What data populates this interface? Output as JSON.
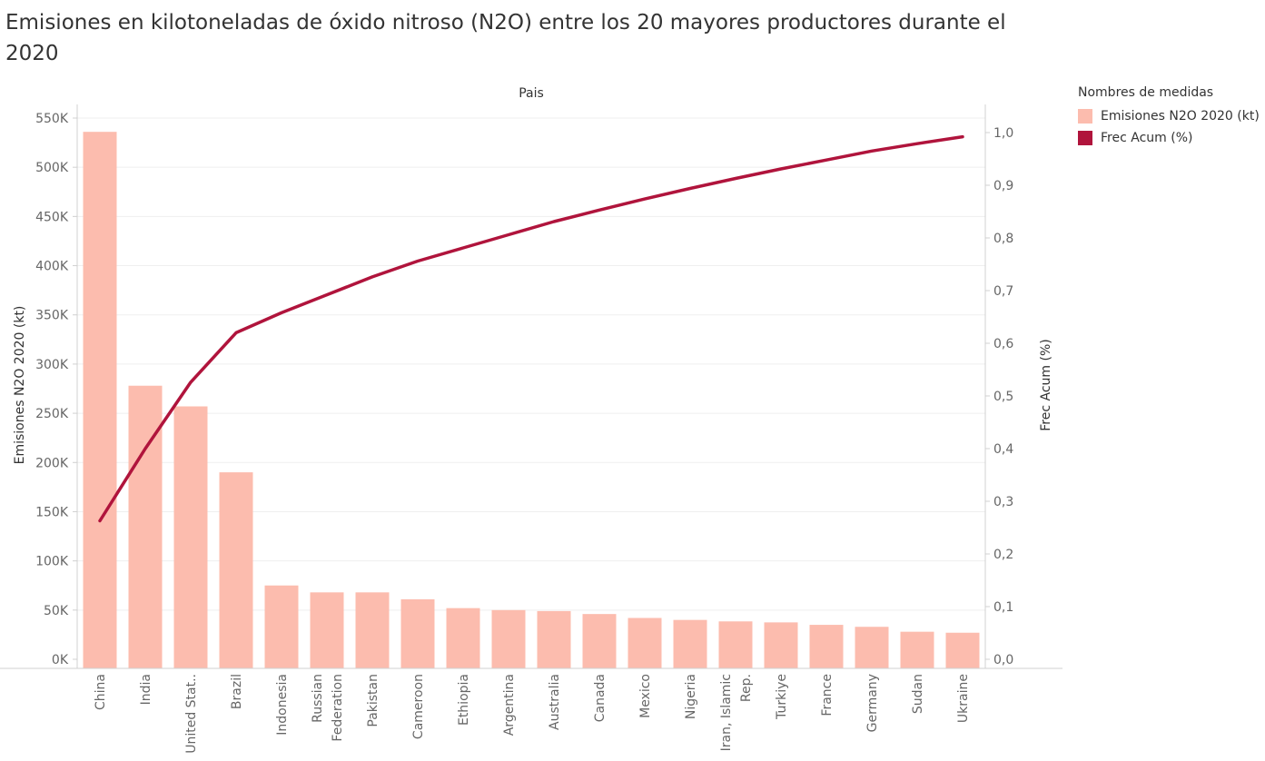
{
  "title": "Emisiones en kilotoneladas de óxido nitroso (N2O) entre los 20 mayores productores durante el 2020",
  "colors": {
    "bar": "#fcbcae",
    "line": "#b0143c"
  },
  "legend": {
    "title": "Nombres de medidas",
    "items": [
      {
        "label": "Emisiones N2O 2020 (kt)",
        "color": "#fcbcae"
      },
      {
        "label": "Frec Acum (%)",
        "color": "#b0143c"
      }
    ]
  },
  "chart_data": {
    "type": "bar",
    "xlabel": "Pais",
    "ylabel": "Emisiones N2O 2020 (kt)",
    "y2label": "Frec Acum (%)",
    "ylim": [
      0,
      550000
    ],
    "y2lim": [
      0,
      1.0
    ],
    "y_ticks": [
      "0K",
      "50K",
      "100K",
      "150K",
      "200K",
      "250K",
      "300K",
      "350K",
      "400K",
      "450K",
      "500K",
      "550K"
    ],
    "y2_ticks": [
      "0,0",
      "0,1",
      "0,2",
      "0,3",
      "0,4",
      "0,5",
      "0,6",
      "0,7",
      "0,8",
      "0,9",
      "1,0"
    ],
    "categories": [
      "China",
      "India",
      "United Stat..",
      "Brazil",
      "Indonesia",
      "Russian Federation",
      "Pakistan",
      "Cameroon",
      "Ethiopia",
      "Argentina",
      "Australia",
      "Canada",
      "Mexico",
      "Nigeria",
      "Iran, Islamic Rep.",
      "Turkiye",
      "France",
      "Germany",
      "Sudan",
      "Ukraine"
    ],
    "series": [
      {
        "name": "Emisiones N2O 2020 (kt)",
        "type": "bar",
        "values": [
          536000,
          278000,
          257000,
          190000,
          75000,
          68000,
          68000,
          61000,
          52000,
          50000,
          49000,
          46000,
          42000,
          40000,
          38500,
          37500,
          35000,
          33000,
          28000,
          27000
        ]
      },
      {
        "name": "Frec Acum (%)",
        "type": "line",
        "axis": "right",
        "values": [
          0.263,
          0.4,
          0.526,
          0.62,
          0.658,
          0.692,
          0.726,
          0.756,
          0.781,
          0.806,
          0.831,
          0.853,
          0.874,
          0.894,
          0.913,
          0.931,
          0.948,
          0.965,
          0.979,
          0.992
        ]
      }
    ]
  }
}
